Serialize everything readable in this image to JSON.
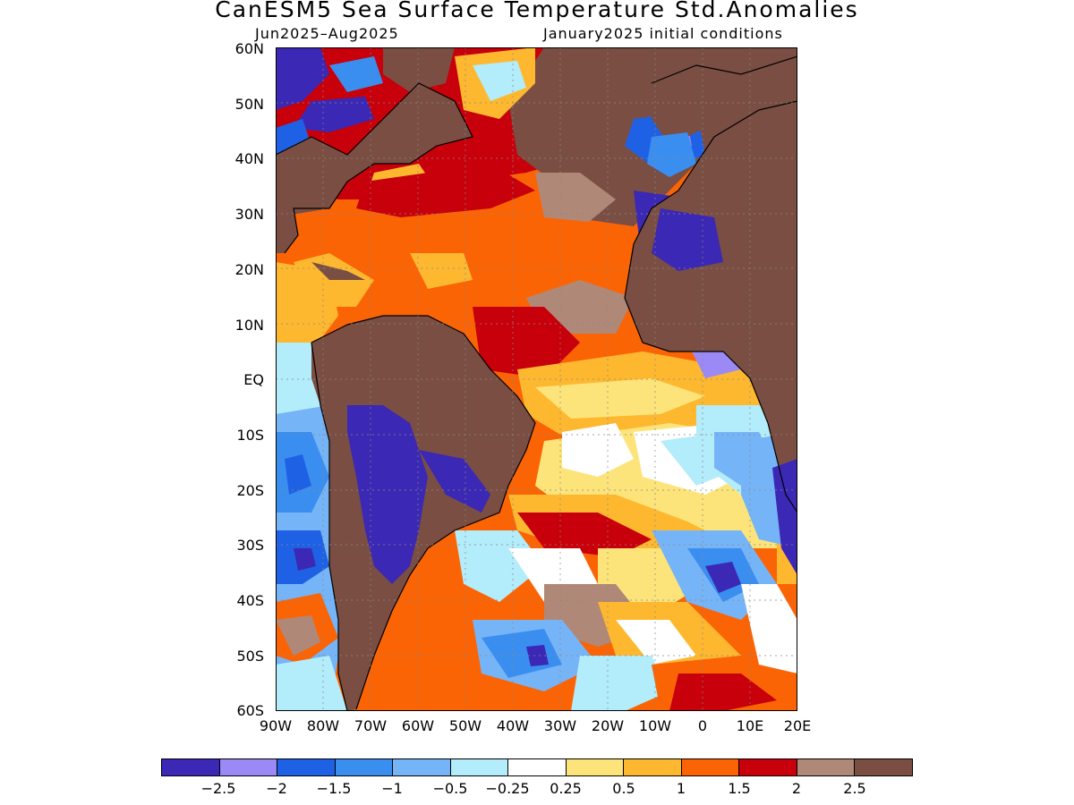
{
  "title": "CanESM5 Sea Surface Temperature Std.Anomalies",
  "subtitle_left": "Jun2025–Aug2025",
  "subtitle_right": "January2025 initial conditions",
  "axes": {
    "lat_labels": [
      "60N",
      "50N",
      "40N",
      "30N",
      "20N",
      "10N",
      "EQ",
      "10S",
      "20S",
      "30S",
      "40S",
      "50S",
      "60S"
    ],
    "lon_labels": [
      "90W",
      "80W",
      "70W",
      "60W",
      "50W",
      "40W",
      "30W",
      "20W",
      "10W",
      "0",
      "10E",
      "20E"
    ]
  },
  "colorbar": {
    "colors": [
      "#3b28b4",
      "#9b8af5",
      "#1f61e4",
      "#3a8ef0",
      "#76b4f8",
      "#b3ecfa",
      "#ffffff",
      "#fde47a",
      "#fdb830",
      "#fb6405",
      "#c8000b",
      "#b08878",
      "#7a4e43"
    ],
    "tick_labels": [
      "−2.5",
      "−2",
      "−1.5",
      "−1",
      "−0.5",
      "−0.25",
      "0.25",
      "0.5",
      "1",
      "1.5",
      "2",
      "2.5"
    ]
  }
}
